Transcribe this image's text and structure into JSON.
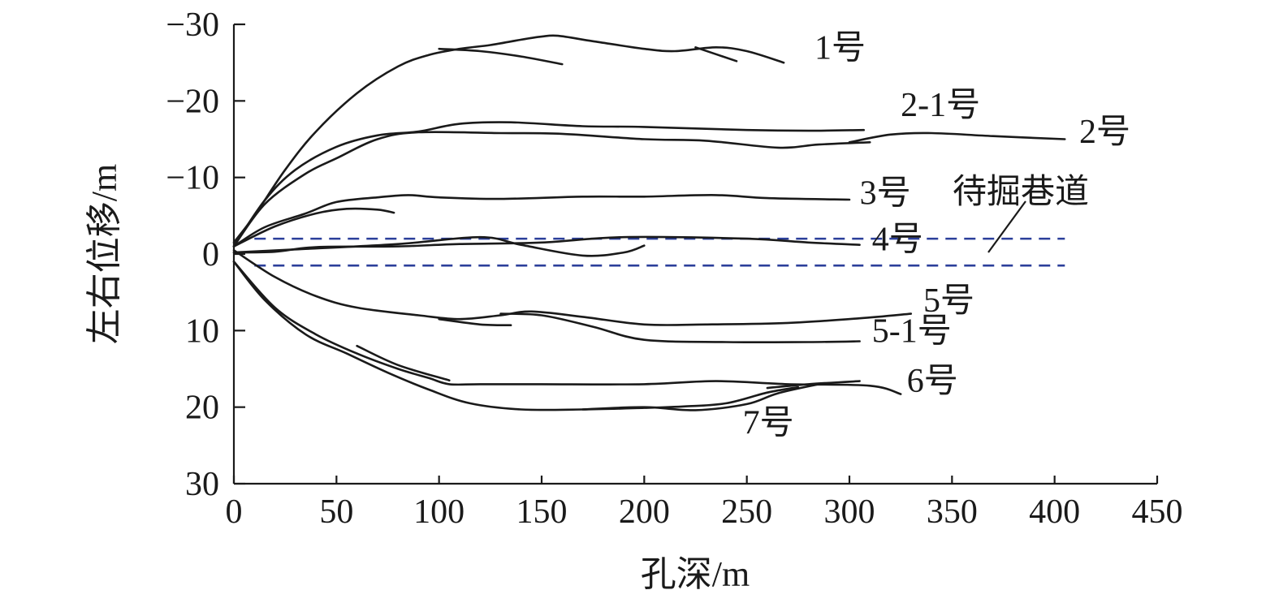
{
  "chart_data": {
    "type": "line",
    "title": "",
    "xlabel": "孔深/m",
    "ylabel": "左右位移/m",
    "xlim": [
      0,
      450
    ],
    "ylim": [
      -30,
      30
    ],
    "x_ticks": [
      {
        "value": 0,
        "label": "0"
      },
      {
        "value": 50,
        "label": "50"
      },
      {
        "value": 100,
        "label": "100"
      },
      {
        "value": 150,
        "label": "150"
      },
      {
        "value": 200,
        "label": "200"
      },
      {
        "value": 250,
        "label": "250"
      },
      {
        "value": 300,
        "label": "300"
      },
      {
        "value": 350,
        "label": "350"
      },
      {
        "value": 400,
        "label": "400"
      },
      {
        "value": 450,
        "label": "450"
      }
    ],
    "y_ticks": [
      {
        "value": -30,
        "label": "−30"
      },
      {
        "value": -20,
        "label": "−20"
      },
      {
        "value": -10,
        "label": "−10"
      },
      {
        "value": 0,
        "label": "0"
      },
      {
        "value": 10,
        "label": "10"
      },
      {
        "value": 20,
        "label": "20"
      },
      {
        "value": 30,
        "label": "30"
      }
    ],
    "series": [
      {
        "name": "1号",
        "traces": [
          [
            [
              0,
              -1.5
            ],
            [
              10,
              -5
            ],
            [
              25,
              -11
            ],
            [
              40,
              -16
            ],
            [
              60,
              -21
            ],
            [
              80,
              -24.5
            ],
            [
              95,
              -26
            ],
            [
              110,
              -26.8
            ],
            [
              125,
              -27.3
            ],
            [
              140,
              -28
            ],
            [
              150,
              -28.4
            ],
            [
              158,
              -28.5
            ],
            [
              175,
              -27.8
            ],
            [
              200,
              -26.8
            ],
            [
              215,
              -26.5
            ],
            [
              235,
              -27
            ],
            [
              250,
              -26.5
            ],
            [
              268,
              -25
            ]
          ],
          [
            [
              100,
              -26.8
            ],
            [
              120,
              -26.5
            ],
            [
              140,
              -25.8
            ],
            [
              160,
              -24.8
            ]
          ],
          [
            [
              225,
              -27
            ],
            [
              245,
              -25.2
            ]
          ]
        ]
      },
      {
        "name": "2-1号",
        "traces": [
          [
            [
              0,
              -1
            ],
            [
              15,
              -7
            ],
            [
              30,
              -11
            ],
            [
              50,
              -14
            ],
            [
              70,
              -15.5
            ],
            [
              90,
              -16
            ],
            [
              110,
              -17
            ],
            [
              135,
              -17.2
            ],
            [
              170,
              -16.7
            ],
            [
              200,
              -16.6
            ],
            [
              250,
              -16.2
            ],
            [
              280,
              -16.1
            ],
            [
              307,
              -16.2
            ]
          ]
        ]
      },
      {
        "name": "2号",
        "traces": [
          [
            [
              0,
              -1
            ],
            [
              15,
              -6.5
            ],
            [
              35,
              -10.5
            ],
            [
              50,
              -12.5
            ],
            [
              70,
              -15
            ],
            [
              90,
              -15.9
            ],
            [
              130,
              -15.8
            ],
            [
              160,
              -15.7
            ],
            [
              200,
              -15
            ],
            [
              230,
              -14.8
            ],
            [
              265,
              -13.9
            ],
            [
              285,
              -14.3
            ],
            [
              310,
              -14.6
            ]
          ],
          [
            [
              300,
              -14.6
            ],
            [
              320,
              -15.6
            ],
            [
              340,
              -15.8
            ],
            [
              370,
              -15.4
            ],
            [
              405,
              -15
            ]
          ]
        ]
      },
      {
        "name": "3号",
        "traces": [
          [
            [
              0,
              -1
            ],
            [
              15,
              -3.5
            ],
            [
              35,
              -5.3
            ],
            [
              50,
              -6.8
            ],
            [
              70,
              -7.4
            ],
            [
              85,
              -7.7
            ],
            [
              100,
              -7.4
            ],
            [
              130,
              -7.2
            ],
            [
              170,
              -7.5
            ],
            [
              200,
              -7.5
            ],
            [
              235,
              -7.7
            ],
            [
              260,
              -7.3
            ],
            [
              300,
              -7.1
            ]
          ],
          [
            [
              0,
              -1
            ],
            [
              20,
              -3.6
            ],
            [
              40,
              -5.3
            ],
            [
              55,
              -5.9
            ],
            [
              70,
              -5.8
            ],
            [
              78,
              -5.4
            ]
          ]
        ]
      },
      {
        "name": "4号",
        "traces": [
          [
            [
              0,
              -0.2
            ],
            [
              20,
              -0.3
            ],
            [
              40,
              -0.9
            ],
            [
              80,
              -1
            ],
            [
              110,
              -1.3
            ],
            [
              150,
              -1.5
            ],
            [
              190,
              -2.2
            ],
            [
              250,
              -2
            ],
            [
              280,
              -1.5
            ],
            [
              305,
              -1.2
            ]
          ],
          [
            [
              0,
              -0.2
            ],
            [
              30,
              -0.6
            ],
            [
              80,
              -1.3
            ],
            [
              120,
              -2.2
            ],
            [
              140,
              -1.2
            ],
            [
              170,
              0.2
            ],
            [
              190,
              -0.2
            ],
            [
              200,
              -1.1
            ]
          ]
        ]
      },
      {
        "name": "5号",
        "traces": [
          [
            [
              0,
              -0.5
            ],
            [
              20,
              3
            ],
            [
              40,
              5.5
            ],
            [
              60,
              7
            ],
            [
              90,
              8
            ],
            [
              110,
              8.5
            ],
            [
              130,
              8
            ],
            [
              145,
              7.5
            ],
            [
              170,
              8.2
            ],
            [
              200,
              9.2
            ],
            [
              230,
              9.2
            ],
            [
              270,
              9
            ],
            [
              305,
              8.4
            ],
            [
              330,
              7.8
            ]
          ],
          [
            [
              100,
              8.5
            ],
            [
              120,
              9.2
            ],
            [
              135,
              9.3
            ]
          ]
        ]
      },
      {
        "name": "5-1号",
        "traces": [
          [
            [
              130,
              7.8
            ],
            [
              150,
              8
            ],
            [
              175,
              9.5
            ],
            [
              200,
              11.2
            ],
            [
              240,
              11.5
            ],
            [
              280,
              11.5
            ],
            [
              305,
              11.4
            ]
          ]
        ]
      },
      {
        "name": "6号",
        "traces": [
          [
            [
              0,
              1
            ],
            [
              20,
              7
            ],
            [
              40,
              10.5
            ],
            [
              60,
              13
            ],
            [
              80,
              15
            ],
            [
              95,
              16.2
            ],
            [
              105,
              17
            ],
            [
              120,
              17
            ],
            [
              150,
              17
            ],
            [
              200,
              17
            ],
            [
              235,
              16.6
            ],
            [
              270,
              17
            ],
            [
              310,
              17.2
            ],
            [
              325,
              18.3
            ]
          ],
          [
            [
              260,
              17.5
            ],
            [
              280,
              17
            ],
            [
              305,
              16.6
            ]
          ]
        ]
      },
      {
        "name": "7号",
        "traces": [
          [
            [
              0,
              1
            ],
            [
              15,
              6
            ],
            [
              35,
              10.5
            ],
            [
              55,
              13
            ],
            [
              75,
              15.5
            ],
            [
              95,
              17.7
            ],
            [
              115,
              19.5
            ],
            [
              140,
              20.3
            ],
            [
              170,
              20.3
            ],
            [
              200,
              20.1
            ],
            [
              220,
              19.9
            ],
            [
              240,
              19.5
            ],
            [
              260,
              18.1
            ],
            [
              275,
              17.4
            ]
          ],
          [
            [
              60,
              12
            ],
            [
              80,
              14.5
            ],
            [
              105,
              16.5
            ]
          ],
          [
            [
              170,
              20.3
            ],
            [
              200,
              20
            ],
            [
              225,
              20.4
            ],
            [
              250,
              19.6
            ],
            [
              265,
              18.2
            ],
            [
              285,
              17
            ]
          ]
        ]
      }
    ],
    "series_labels": [
      {
        "series": "1号",
        "at": [
          283,
          -25.5
        ]
      },
      {
        "series": "2-1号",
        "at": [
          325,
          -18
        ]
      },
      {
        "series": "2号",
        "at": [
          412,
          -14.5
        ]
      },
      {
        "series": "3号",
        "at": [
          305,
          -6.5
        ]
      },
      {
        "series": "4号",
        "at": [
          311,
          -0.5
        ]
      },
      {
        "series": "5号",
        "at": [
          336,
          7.5
        ]
      },
      {
        "series": "5-1号",
        "at": [
          311,
          11.5
        ]
      },
      {
        "series": "6号",
        "at": [
          328,
          18
        ]
      },
      {
        "series": "7号",
        "at": [
          248,
          23.5
        ]
      }
    ],
    "roadway": {
      "label": "待掘巷道",
      "y_values": [
        1.5,
        -2.0
      ],
      "x_range": [
        10,
        405
      ]
    }
  }
}
